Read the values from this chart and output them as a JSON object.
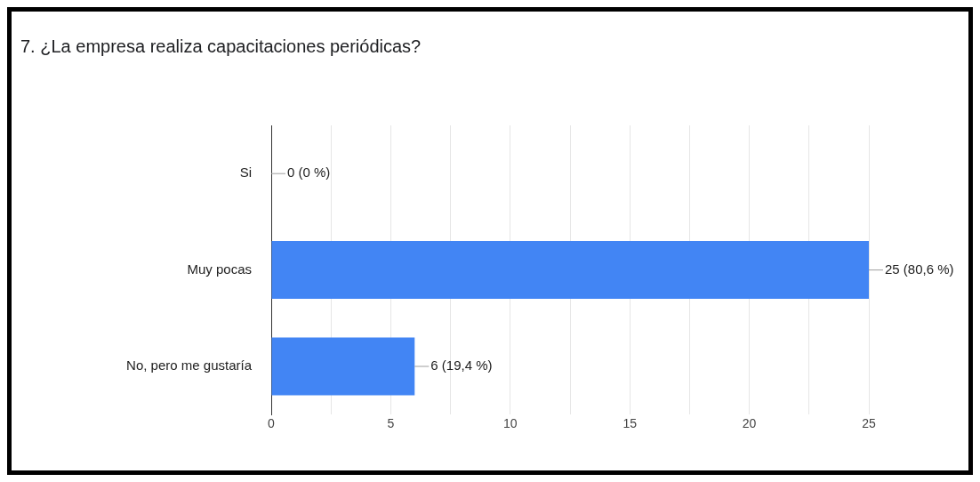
{
  "chart_data": {
    "type": "bar",
    "orientation": "horizontal",
    "title": "7. ¿La empresa realiza capacitaciones periódicas?",
    "categories": [
      "Si",
      "Muy pocas",
      "No, pero me gustaría"
    ],
    "values": [
      0,
      25,
      6
    ],
    "color": "#4285f4",
    "value_labels": [
      "0 (0 %)",
      "25 (80,6 %)",
      "6 (19,4 %)"
    ],
    "xlim": [
      0,
      25
    ],
    "xticks": [
      0,
      {
        "value": 2.5,
        "label": null
      },
      5,
      {
        "value": 7.5,
        "label": null
      },
      10,
      {
        "value": 12.5,
        "label": null
      },
      15,
      {
        "value": 17.5,
        "label": null
      },
      20,
      {
        "value": 22.5,
        "label": null
      },
      25
    ],
    "grid": "x",
    "legend": false
  }
}
